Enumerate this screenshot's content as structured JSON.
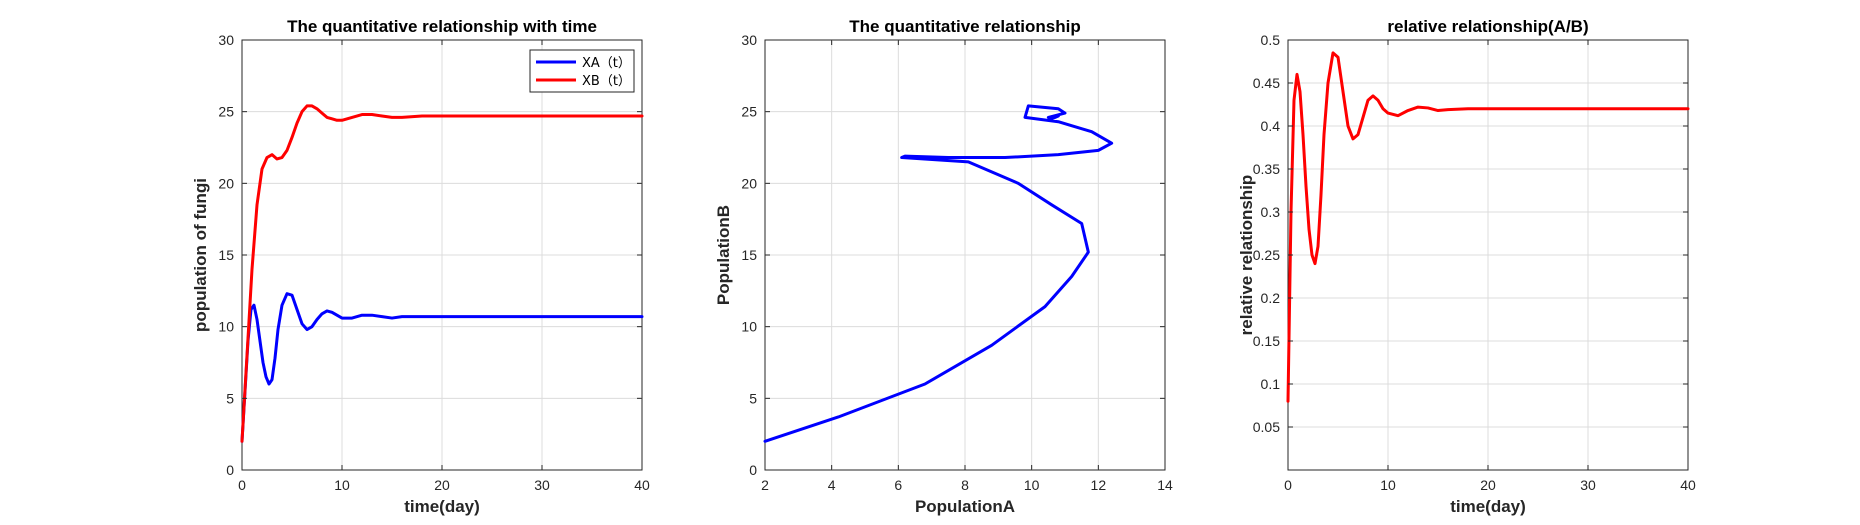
{
  "chart_data": [
    {
      "type": "line",
      "title": "The quantitative relationship with time",
      "xlabel": "time(day)",
      "ylabel": "population of fungi",
      "xlim": [
        0,
        40
      ],
      "ylim": [
        0,
        30
      ],
      "xticks": [
        0,
        10,
        20,
        30,
        40
      ],
      "yticks": [
        0,
        5,
        10,
        15,
        20,
        25,
        30
      ],
      "grid": true,
      "legend": {
        "placement": "top-right"
      },
      "series": [
        {
          "name": "XA（t）",
          "color": "#0000ff",
          "x": [
            0,
            0.3,
            0.6,
            0.9,
            1.2,
            1.5,
            1.8,
            2.1,
            2.4,
            2.7,
            3.0,
            3.3,
            3.6,
            4.0,
            4.5,
            5.0,
            5.5,
            6.0,
            6.5,
            7.0,
            7.5,
            8.0,
            8.5,
            9.0,
            9.5,
            10.0,
            11.0,
            12.0,
            13.0,
            14.0,
            15.0,
            16.0,
            17.0,
            18.0,
            20.0,
            25.0,
            30.0,
            35.0,
            40.0
          ],
          "y": [
            2.0,
            5.5,
            9.0,
            11.2,
            11.5,
            10.5,
            9.0,
            7.5,
            6.5,
            6.0,
            6.3,
            7.8,
            9.8,
            11.5,
            12.3,
            12.2,
            11.2,
            10.2,
            9.8,
            10.0,
            10.5,
            10.9,
            11.1,
            11.0,
            10.8,
            10.6,
            10.6,
            10.8,
            10.8,
            10.7,
            10.6,
            10.7,
            10.7,
            10.7,
            10.7,
            10.7,
            10.7,
            10.7,
            10.7
          ]
        },
        {
          "name": "XB（t）",
          "color": "#ff0000",
          "x": [
            0,
            0.5,
            1.0,
            1.5,
            2.0,
            2.5,
            3.0,
            3.5,
            4.0,
            4.5,
            5.0,
            5.5,
            6.0,
            6.5,
            7.0,
            7.5,
            8.0,
            8.5,
            9.0,
            9.5,
            10.0,
            11.0,
            12.0,
            13.0,
            14.0,
            15.0,
            16.0,
            18.0,
            20.0,
            25.0,
            30.0,
            35.0,
            40.0
          ],
          "y": [
            2.0,
            8.0,
            14.0,
            18.5,
            21.0,
            21.8,
            22.0,
            21.7,
            21.8,
            22.3,
            23.2,
            24.2,
            25.0,
            25.4,
            25.4,
            25.2,
            24.9,
            24.6,
            24.5,
            24.4,
            24.4,
            24.6,
            24.8,
            24.8,
            24.7,
            24.6,
            24.6,
            24.7,
            24.7,
            24.7,
            24.7,
            24.7,
            24.7
          ]
        }
      ]
    },
    {
      "type": "line",
      "title": "The quantitative relationship",
      "xlabel": "PopulationA",
      "ylabel": "PopulationB",
      "xlim": [
        2,
        14
      ],
      "ylim": [
        0,
        30
      ],
      "xticks": [
        2,
        4,
        6,
        8,
        10,
        12,
        14
      ],
      "yticks": [
        0,
        5,
        10,
        15,
        20,
        25,
        30
      ],
      "grid": true,
      "series": [
        {
          "color": "#0000ff",
          "x": [
            2.0,
            4.2,
            6.8,
            8.8,
            10.4,
            11.2,
            11.7,
            11.5,
            10.6,
            9.6,
            8.1,
            6.1,
            6.2,
            7.5,
            9.2,
            10.8,
            12.0,
            12.4,
            11.8,
            10.8,
            9.8,
            9.9,
            10.8,
            11.0,
            10.5,
            10.6,
            10.8,
            10.7
          ],
          "y": [
            2.0,
            3.7,
            6.0,
            8.7,
            11.4,
            13.5,
            15.2,
            17.2,
            18.5,
            20.0,
            21.5,
            21.8,
            21.9,
            21.8,
            21.8,
            22.0,
            22.3,
            22.8,
            23.6,
            24.3,
            24.6,
            25.4,
            25.2,
            24.9,
            24.6,
            24.5,
            24.7,
            24.7
          ]
        }
      ]
    },
    {
      "type": "line",
      "title": "relative relationship(A/B)",
      "xlabel": "time(day)",
      "ylabel": "relative relationship",
      "xlim": [
        0,
        40
      ],
      "ylim": [
        0,
        0.5
      ],
      "xticks": [
        0,
        10,
        20,
        30,
        40
      ],
      "yticks": [
        0.05,
        0.1,
        0.15,
        0.2,
        0.25,
        0.3,
        0.35,
        0.4,
        0.45,
        0.5
      ],
      "ytick_labels": [
        "0.05",
        "0.1",
        "0.15",
        "0.2",
        "0.25",
        "0.3",
        "0.35",
        "0.4",
        "0.45",
        "0.5"
      ],
      "grid": true,
      "series": [
        {
          "color": "#ff0000",
          "x": [
            0,
            0.3,
            0.6,
            0.9,
            1.2,
            1.5,
            1.8,
            2.1,
            2.4,
            2.7,
            3.0,
            3.3,
            3.6,
            4.0,
            4.5,
            5.0,
            5.5,
            6.0,
            6.5,
            7.0,
            7.5,
            8.0,
            8.5,
            9.0,
            9.5,
            10.0,
            11.0,
            12.0,
            13.0,
            14.0,
            15.0,
            16.0,
            18.0,
            20.0,
            25.0,
            30.0,
            35.0,
            40.0
          ],
          "y": [
            0.08,
            0.3,
            0.43,
            0.46,
            0.44,
            0.39,
            0.33,
            0.28,
            0.25,
            0.24,
            0.26,
            0.32,
            0.39,
            0.45,
            0.485,
            0.48,
            0.44,
            0.4,
            0.385,
            0.39,
            0.41,
            0.43,
            0.435,
            0.43,
            0.42,
            0.415,
            0.412,
            0.418,
            0.422,
            0.421,
            0.418,
            0.419,
            0.42,
            0.42,
            0.42,
            0.42,
            0.42,
            0.42
          ]
        }
      ]
    }
  ]
}
